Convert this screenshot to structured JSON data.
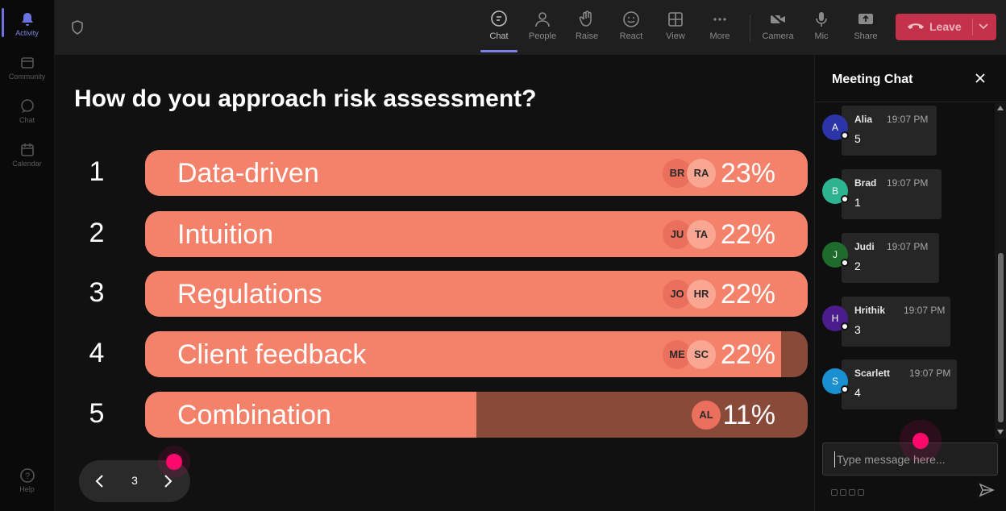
{
  "rail": {
    "activity": "Activity",
    "community": "Community",
    "chat": "Chat",
    "calendar": "Calendar",
    "help": "Help"
  },
  "toolbar": {
    "chat": "Chat",
    "people": "People",
    "raise": "Raise",
    "react": "React",
    "view": "View",
    "more": "More",
    "camera": "Camera",
    "mic": "Mic",
    "share": "Share",
    "leave": "Leave"
  },
  "poll": {
    "question": "How do you approach risk assessment?",
    "options": [
      {
        "num": "1",
        "label": "Data-driven",
        "percent": "23%",
        "fill": 1.0,
        "avatars": [
          "BR",
          "RA"
        ]
      },
      {
        "num": "2",
        "label": "Intuition",
        "percent": "22%",
        "fill": 1.0,
        "avatars": [
          "JU",
          "TA"
        ]
      },
      {
        "num": "3",
        "label": "Regulations",
        "percent": "22%",
        "fill": 1.0,
        "avatars": [
          "JO",
          "HR"
        ]
      },
      {
        "num": "4",
        "label": "Client feedback",
        "percent": "22%",
        "fill": 0.96,
        "avatars": [
          "ME",
          "SC"
        ]
      },
      {
        "num": "5",
        "label": "Combination",
        "percent": "11%",
        "fill": 0.5,
        "avatars": [
          "AL"
        ]
      }
    ],
    "page": "3"
  },
  "chat": {
    "title": "Meeting Chat",
    "placeholder": "Type message here...",
    "messages": [
      {
        "initial": "A",
        "name": "Alia",
        "time": "19:07 PM",
        "text": "5",
        "color": "#2b35a8"
      },
      {
        "initial": "B",
        "name": "Brad",
        "time": "19:07 PM",
        "text": "1",
        "color": "#2bb48f"
      },
      {
        "initial": "J",
        "name": "Judi",
        "time": "19:07 PM",
        "text": "2",
        "color": "#1f6b2e"
      },
      {
        "initial": "H",
        "name": "Hrithik",
        "time": "19:07 PM",
        "text": "3",
        "color": "#4a1c8c"
      },
      {
        "initial": "S",
        "name": "Scarlett",
        "time": "19:07 PM",
        "text": "4",
        "color": "#1a8fd0"
      }
    ]
  },
  "colors": {
    "bar_fill": "#f4826a",
    "bar_track": "#8a4a3a",
    "leave": "#c4314b",
    "accent": "#7b83eb",
    "pointer": "#ff0a6c"
  }
}
